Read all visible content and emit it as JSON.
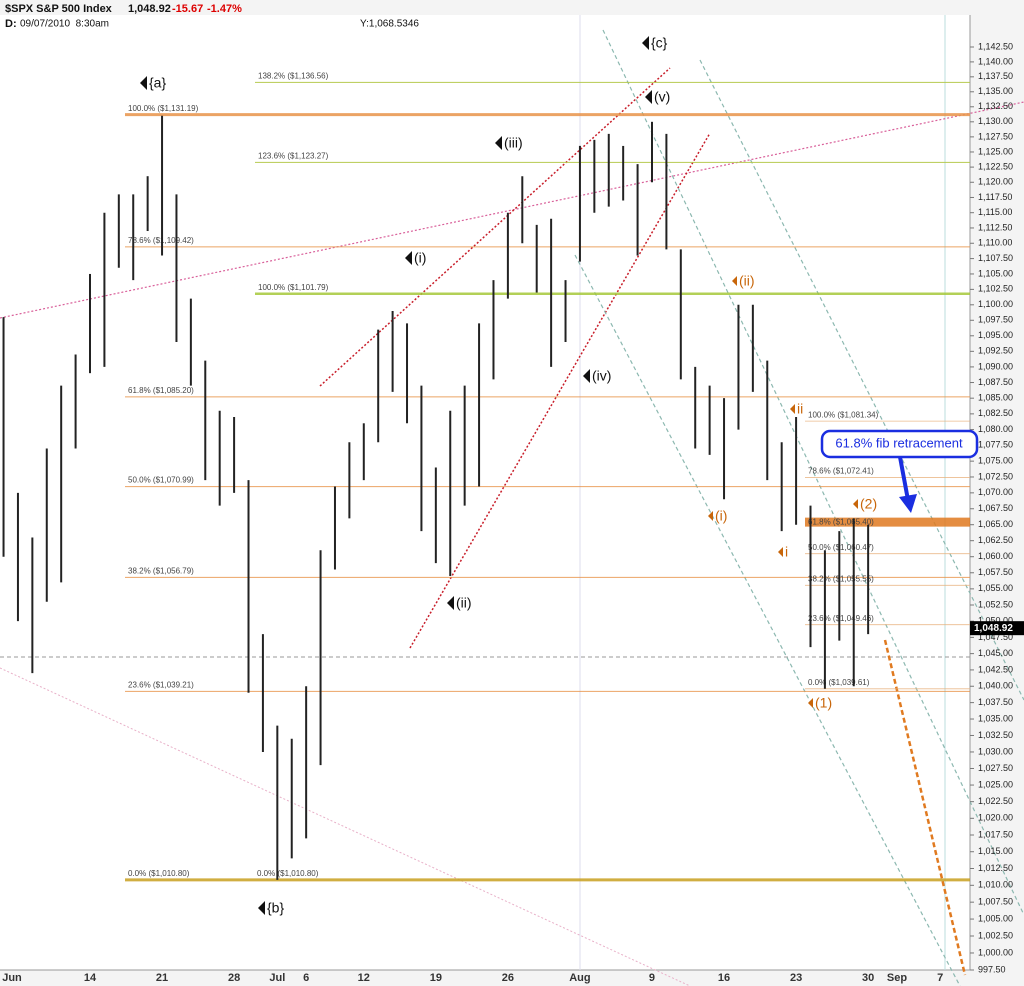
{
  "header": {
    "symbol": "$SPX S&P 500 Index",
    "last": "1,048.92",
    "change": "-15.67",
    "change_pct": "-1.47%",
    "date_label": "D:",
    "date": "09/07/2010  8:30am",
    "cursor": "Y:1,068.5346"
  },
  "chart_data": {
    "type": "range_bar",
    "color": "#222222",
    "log_scale": true,
    "categories": [
      "Jun",
      null,
      null,
      null,
      null,
      null,
      null,
      null,
      null,
      "14",
      null,
      null,
      null,
      null,
      "21",
      null,
      null,
      null,
      null,
      "28",
      null,
      null,
      "Jul",
      null,
      "6",
      null,
      null,
      null,
      "12",
      null,
      null,
      null,
      null,
      "19",
      null,
      null,
      null,
      null,
      "26",
      null,
      null,
      null,
      null,
      "Aug",
      null,
      null,
      null,
      null,
      "9",
      null,
      null,
      null,
      null,
      "16",
      null,
      null,
      null,
      null,
      "23",
      null,
      null,
      null,
      null,
      "30",
      null,
      "Sep",
      null,
      null,
      "7",
      null,
      null
    ],
    "high": [
      null,
      null,
      null,
      1098,
      1070,
      1063,
      1077,
      1087,
      1092,
      1105,
      1115,
      1118,
      1118,
      1121,
      1131,
      1118,
      1101,
      1091,
      1083,
      1082,
      1072,
      1048,
      1034,
      1032,
      1040,
      1061,
      1071,
      1078,
      1081,
      1096,
      1099,
      1097,
      1087,
      1074,
      1083,
      1087,
      1097,
      1104,
      1115,
      1121,
      1113,
      1114,
      1104,
      1126,
      1127,
      1128,
      1126,
      1123,
      1130,
      1128,
      1109,
      1090,
      1087,
      1085,
      1100,
      1100,
      1091,
      1078,
      1082,
      1068,
      1061,
      1064,
      1066,
      1065,
      null,
      null,
      null,
      null,
      null,
      null,
      null
    ],
    "low": [
      null,
      null,
      null,
      1060,
      1050,
      1042,
      1053,
      1056,
      1077,
      1089,
      1090,
      1106,
      1104,
      1112,
      1108,
      1094,
      1087,
      1072,
      1068,
      1070,
      1039,
      1030,
      1010.8,
      1014,
      1017,
      1028,
      1058,
      1066,
      1072,
      1078,
      1086,
      1081,
      1064,
      1059,
      1057,
      1068,
      1071,
      1088,
      1101,
      1110,
      1102,
      1090,
      1094,
      1107,
      1115,
      1116,
      1117,
      1108,
      1120,
      1109,
      1088,
      1077,
      1076,
      1069,
      1080,
      1086,
      1072,
      1064,
      1065,
      1046,
      1039.61,
      1047,
      1040,
      1048,
      null,
      null,
      null,
      null,
      null,
      null,
      null
    ],
    "last_price": {
      "value": 1048.92,
      "label": "1,048.92"
    },
    "ylim": [
      997.5,
      1142.5
    ],
    "yticks": [
      {
        "value": 997.5,
        "label": "997.50"
      },
      {
        "value": 1000,
        "label": "1,000.00"
      },
      {
        "value": 1002.5,
        "label": "1,002.50"
      },
      {
        "value": 1005,
        "label": "1,005.00"
      },
      {
        "value": 1007.5,
        "label": "1,007.50"
      },
      {
        "value": 1010,
        "label": "1,010.00"
      },
      {
        "value": 1012.5,
        "label": "1,012.50"
      },
      {
        "value": 1015,
        "label": "1,015.00"
      },
      {
        "value": 1017.5,
        "label": "1,017.50"
      },
      {
        "value": 1020,
        "label": "1,020.00"
      },
      {
        "value": 1022.5,
        "label": "1,022.50"
      },
      {
        "value": 1025,
        "label": "1,025.00"
      },
      {
        "value": 1027.5,
        "label": "1,027.50"
      },
      {
        "value": 1030,
        "label": "1,030.00"
      },
      {
        "value": 1032.5,
        "label": "1,032.50"
      },
      {
        "value": 1035,
        "label": "1,035.00"
      },
      {
        "value": 1037.5,
        "label": "1,037.50"
      },
      {
        "value": 1040,
        "label": "1,040.00"
      },
      {
        "value": 1042.5,
        "label": "1,042.50"
      },
      {
        "value": 1045,
        "label": "1,045.00"
      },
      {
        "value": 1047.5,
        "label": "1,047.50"
      },
      {
        "value": 1050,
        "label": "1,050.00"
      },
      {
        "value": 1052.5,
        "label": "1,052.50"
      },
      {
        "value": 1055,
        "label": "1,055.00"
      },
      {
        "value": 1057.5,
        "label": "1,057.50"
      },
      {
        "value": 1060,
        "label": "1,060.00"
      },
      {
        "value": 1062.5,
        "label": "1,062.50"
      },
      {
        "value": 1065,
        "label": "1,065.00"
      },
      {
        "value": 1067.5,
        "label": "1,067.50"
      },
      {
        "value": 1070,
        "label": "1,070.00"
      },
      {
        "value": 1072.5,
        "label": "1,072.50"
      },
      {
        "value": 1075,
        "label": "1,075.00"
      },
      {
        "value": 1077.5,
        "label": "1,077.50"
      },
      {
        "value": 1080,
        "label": "1,080.00"
      },
      {
        "value": 1082.5,
        "label": "1,082.50"
      },
      {
        "value": 1085,
        "label": "1,085.00"
      },
      {
        "value": 1087.5,
        "label": "1,087.50"
      },
      {
        "value": 1090,
        "label": "1,090.00"
      },
      {
        "value": 1092.5,
        "label": "1,092.50"
      },
      {
        "value": 1095,
        "label": "1,095.00"
      },
      {
        "value": 1097.5,
        "label": "1,097.50"
      },
      {
        "value": 1100,
        "label": "1,100.00"
      },
      {
        "value": 1102.5,
        "label": "1,102.50"
      },
      {
        "value": 1105,
        "label": "1,105.00"
      },
      {
        "value": 1107.5,
        "label": "1,107.50"
      },
      {
        "value": 1110,
        "label": "1,110.00"
      },
      {
        "value": 1112.5,
        "label": "1,112.50"
      },
      {
        "value": 1115,
        "label": "1,115.00"
      },
      {
        "value": 1117.5,
        "label": "1,117.50"
      },
      {
        "value": 1120,
        "label": "1,120.00"
      },
      {
        "value": 1122.5,
        "label": "1,122.50"
      },
      {
        "value": 1125,
        "label": "1,125.00"
      },
      {
        "value": 1127.5,
        "label": "1,127.50"
      },
      {
        "value": 1130,
        "label": "1,130.00"
      },
      {
        "value": 1132.5,
        "label": "1,132.50"
      },
      {
        "value": 1135,
        "label": "1,135.00"
      },
      {
        "value": 1137.5,
        "label": "1,137.50"
      },
      {
        "value": 1140,
        "label": "1,140.00"
      },
      {
        "value": 1142.5,
        "label": "1,142.50"
      }
    ],
    "fib_levels": [
      {
        "label": "138.2% ($1,136.56)",
        "value": 1136.56,
        "color": "#b4c84a"
      },
      {
        "label": "100.0% ($1,131.19)",
        "value": 1131.19,
        "color": "#e8944a"
      },
      {
        "label": "123.6% ($1,123.27)",
        "value": 1123.27,
        "color": "#b4c84a"
      },
      {
        "label": "78.6% ($1,109.42)",
        "value": 1109.42,
        "color": "#e8944a"
      },
      {
        "label": "100.0% ($1,101.79)",
        "value": 1101.79,
        "color": "#a6c83a"
      },
      {
        "label": "61.8% ($1,085.20)",
        "value": 1085.2,
        "color": "#e8944a"
      },
      {
        "label": "50.0% ($1,070.99)",
        "value": 1070.99,
        "color": "#e8944a"
      },
      {
        "label": "38.2% ($1,056.79)",
        "value": 1056.79,
        "color": "#e8944a"
      },
      {
        "label": "23.6% ($1,039.21)",
        "value": 1039.21,
        "color": "#e8944a"
      },
      {
        "label": "0.0% ($1,010.80)",
        "value": 1010.8,
        "color": "#c8a020"
      },
      {
        "label": "0.0% ($1,010.80)",
        "value": 1010.8,
        "color": "#c8a020"
      },
      {
        "label": "100.0% ($1,081.34)",
        "value": 1081.34,
        "color": "#e8b07a"
      },
      {
        "label": "78.6% ($1,072.41)",
        "value": 1072.41,
        "color": "#e8b07a"
      },
      {
        "label": "61.8% ($1,065.40)",
        "value": 1065.4,
        "color": "#e07a20"
      },
      {
        "label": "50.0% ($1,060.47)",
        "value": 1060.47,
        "color": "#e8b07a"
      },
      {
        "label": "38.2% ($1,055.55)",
        "value": 1055.55,
        "color": "#e8b07a"
      },
      {
        "label": "23.6% ($1,049.46)",
        "value": 1049.46,
        "color": "#e8b07a"
      },
      {
        "label": "0.0% ($1,039.61)",
        "value": 1039.61,
        "color": "#e8b07a"
      }
    ],
    "wave_labels": [
      {
        "text": "{a}",
        "color": "#111111"
      },
      {
        "text": "{b}",
        "color": "#111111"
      },
      {
        "text": "{c}",
        "color": "#111111"
      },
      {
        "text": "(i)",
        "color": "#111111"
      },
      {
        "text": "(ii)",
        "color": "#111111"
      },
      {
        "text": "(iii)",
        "color": "#111111"
      },
      {
        "text": "(iv)",
        "color": "#111111"
      },
      {
        "text": "(v)",
        "color": "#111111"
      },
      {
        "text": "(ii)",
        "color": "#c8660a"
      },
      {
        "text": "ii",
        "color": "#c8660a"
      },
      {
        "text": "(i)",
        "color": "#c8660a"
      },
      {
        "text": "i",
        "color": "#c8660a"
      },
      {
        "text": "(2)",
        "color": "#c8660a"
      },
      {
        "text": "(1)",
        "color": "#c8660a"
      }
    ],
    "callout": "61.8% fib retracement"
  }
}
